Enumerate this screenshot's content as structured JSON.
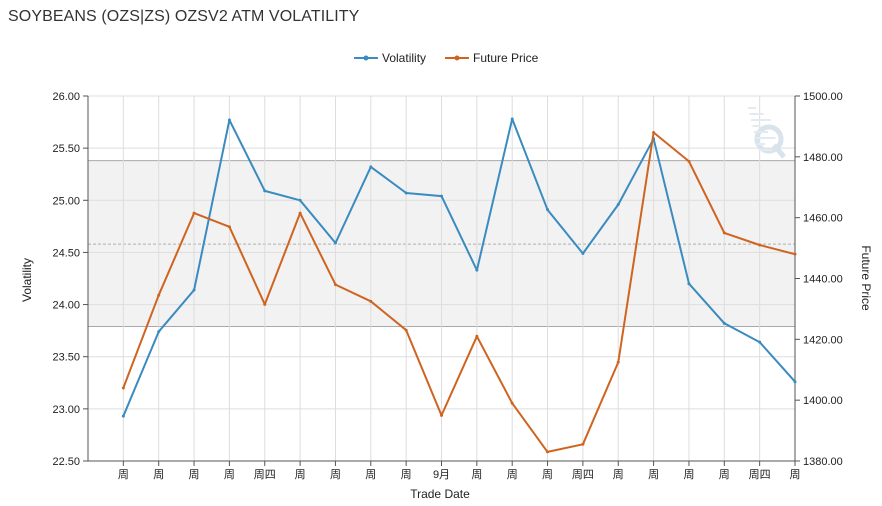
{
  "page": {
    "title": "SOYBEANS (OZS|ZS) OZSV2 ATM VOLATILITY"
  },
  "colors": {
    "volatility": "#3a8bc0",
    "future_price": "#cf6420",
    "band_fill": "#f2f2f2",
    "band_line": "#a9a9a9",
    "grid": "#dddddd"
  },
  "watermark": {
    "icon": "q-logo-icon"
  },
  "chart_data": {
    "type": "line",
    "title": "SOYBEANS (OZS|ZS) OZSV2 ATM VOLATILITY",
    "xlabel": "Trade Date",
    "ylabel": "Volatility",
    "y2label": "Future Price",
    "categories": [
      "周",
      "周",
      "周",
      "周",
      "周四",
      "周",
      "周",
      "周",
      "周",
      "9月",
      "周",
      "周",
      "周",
      "周四",
      "周",
      "周",
      "周",
      "周",
      "周四",
      "周"
    ],
    "series": [
      {
        "name": "Volatility",
        "axis": "left",
        "values": [
          22.93,
          23.74,
          24.14,
          25.77,
          25.09,
          25.0,
          24.59,
          25.32,
          25.07,
          25.04,
          24.33,
          25.78,
          24.91,
          24.49,
          24.96,
          25.59,
          24.2,
          23.82,
          23.64,
          23.26
        ]
      },
      {
        "name": "Future Price",
        "axis": "right",
        "values": [
          1404.0,
          1434.5,
          1461.5,
          1457.0,
          1431.5,
          1461.5,
          1438.0,
          1432.5,
          1423.0,
          1395.0,
          1421.0,
          1399.0,
          1383.0,
          1385.5,
          1412.5,
          1488.0,
          1478.5,
          1455.0,
          1451.0,
          1448.0
        ]
      }
    ],
    "ylim": [
      22.5,
      26.0
    ],
    "y_ticks": [
      "22.50",
      "23.00",
      "23.50",
      "24.00",
      "24.50",
      "25.00",
      "25.50",
      "26.00"
    ],
    "y2lim": [
      1380,
      1500
    ],
    "y2_ticks": [
      "1380.00",
      "1400.00",
      "1420.00",
      "1440.00",
      "1460.00",
      "1480.00",
      "1500.00"
    ],
    "band": {
      "upper": 25.38,
      "mean": 24.58,
      "lower": 23.79
    },
    "legend": "top-center",
    "grid": true
  }
}
